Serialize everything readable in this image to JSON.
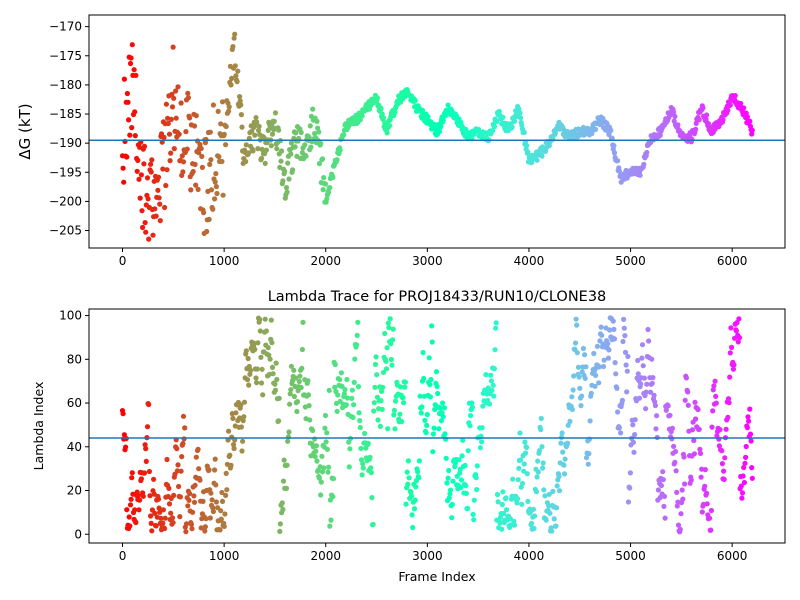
{
  "chart_data": [
    {
      "type": "scatter",
      "title": "",
      "xlabel": "",
      "ylabel": "ΔG (kT)",
      "xlim": [
        -330,
        6520
      ],
      "ylim": [
        -208,
        -168
      ],
      "xticks": [
        0,
        1000,
        2000,
        3000,
        4000,
        5000,
        6000
      ],
      "yticks": [
        -205,
        -200,
        -195,
        -190,
        -185,
        -180,
        -175,
        -170
      ],
      "reference_line": -189.5,
      "reference_color": "#1f77b4",
      "colormap": "rainbow (frame index high = violet, low = red)",
      "n_frames": 6200,
      "series_points_x": [
        0,
        100,
        200,
        300,
        400,
        500,
        600,
        700,
        800,
        900,
        1000,
        1100,
        1200,
        1300,
        1400,
        1500,
        1600,
        1700,
        1800,
        1900,
        2000,
        2100,
        2200,
        2300,
        2400,
        2500,
        2600,
        2700,
        2800,
        2900,
        3000,
        3100,
        3200,
        3300,
        3400,
        3500,
        3600,
        3700,
        3800,
        3900,
        4000,
        4100,
        4200,
        4300,
        4400,
        4500,
        4600,
        4700,
        4800,
        4900,
        5000,
        5100,
        5200,
        5300,
        5400,
        5500,
        5600,
        5700,
        5800,
        5900,
        6000,
        6100,
        6200
      ],
      "series_points_y": [
        -190,
        -178,
        -196,
        -200,
        -194,
        -182,
        -188,
        -190,
        -199,
        -192,
        -190,
        -173,
        -193,
        -188,
        -191,
        -187,
        -197,
        -190,
        -190,
        -186,
        -200,
        -193,
        -187,
        -186,
        -184,
        -182,
        -188,
        -183,
        -181,
        -184,
        -186,
        -188,
        -184,
        -186,
        -189,
        -188,
        -189,
        -185,
        -188,
        -184,
        -193,
        -192,
        -190,
        -187,
        -189,
        -188,
        -188,
        -186,
        -188,
        -196,
        -195,
        -195,
        -189,
        -188,
        -184,
        -189,
        -189,
        -184,
        -188,
        -186,
        -182,
        -184,
        -188
      ]
    },
    {
      "type": "scatter",
      "title": "Lambda Trace for PROJ18433/RUN10/CLONE38",
      "xlabel": "Frame Index",
      "ylabel": "Lambda Index",
      "xlim": [
        -330,
        6520
      ],
      "ylim": [
        -4,
        103
      ],
      "xticks": [
        0,
        1000,
        2000,
        3000,
        4000,
        5000,
        6000
      ],
      "yticks": [
        0,
        20,
        40,
        60,
        80,
        100
      ],
      "reference_line": 44,
      "reference_color": "#1f77b4",
      "colormap": "rainbow (frame index high = violet, low = red)",
      "n_frames": 6200,
      "value_range": [
        1,
        99
      ]
    }
  ]
}
